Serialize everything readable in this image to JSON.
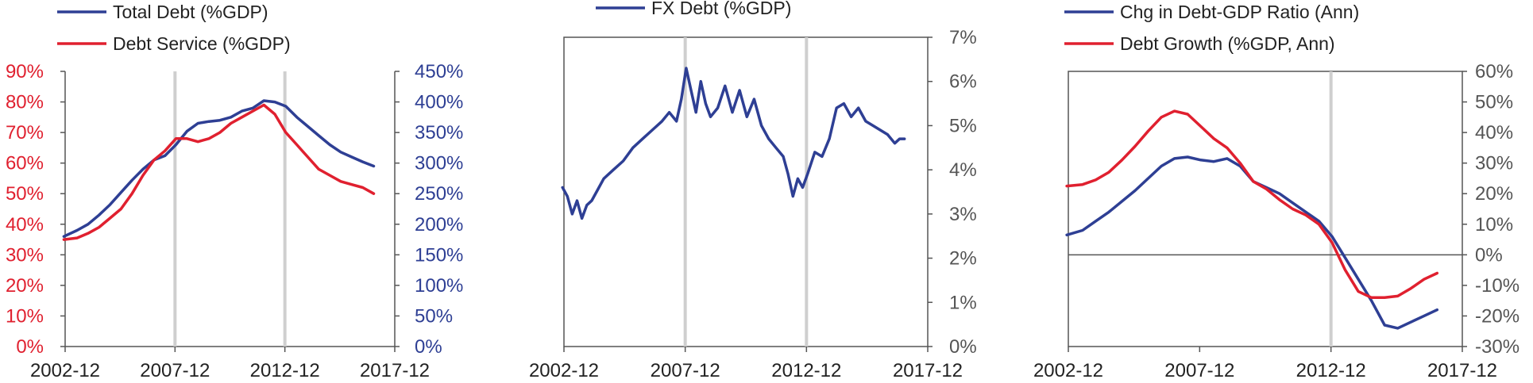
{
  "colors": {
    "blue": "#2e3f94",
    "red": "#e0202f",
    "axis": "#555555",
    "grid": "#cfcfcf",
    "text": "#222222"
  },
  "chart_data": [
    {
      "type": "line",
      "x_ticks": [
        "2002-12",
        "2007-12",
        "2012-12",
        "2017-12"
      ],
      "vlines": [
        "2007-12",
        "2012-12"
      ],
      "y_left": {
        "ticks": [
          "0%",
          "10%",
          "20%",
          "30%",
          "40%",
          "50%",
          "60%",
          "70%",
          "80%",
          "90%"
        ],
        "lim": [
          0,
          90
        ],
        "color": "red"
      },
      "y_right": {
        "ticks": [
          "0%",
          "50%",
          "100%",
          "150%",
          "200%",
          "250%",
          "300%",
          "350%",
          "400%",
          "450%"
        ],
        "lim": [
          0,
          450
        ],
        "color": "blue"
      },
      "series": [
        {
          "name": "Total Debt (%GDP)",
          "color": "blue",
          "axis": "right",
          "x": [
            2002.9,
            2003.5,
            2004.0,
            2004.5,
            2005.0,
            2005.5,
            2006.0,
            2006.5,
            2007.0,
            2007.5,
            2008.0,
            2008.5,
            2009.0,
            2009.5,
            2010.0,
            2010.5,
            2011.0,
            2011.5,
            2012.0,
            2012.5,
            2013.0,
            2013.5,
            2014.0,
            2014.5,
            2015.0,
            2015.5,
            2016.0,
            2016.5,
            2017.0
          ],
          "y": [
            180,
            190,
            200,
            215,
            232,
            252,
            272,
            290,
            305,
            312,
            330,
            352,
            365,
            368,
            370,
            375,
            385,
            390,
            402,
            400,
            393,
            375,
            360,
            345,
            330,
            318,
            310,
            302,
            295
          ]
        },
        {
          "name": "Debt Service (%GDP)",
          "color": "red",
          "axis": "left",
          "x": [
            2002.9,
            2003.5,
            2004.0,
            2004.5,
            2005.0,
            2005.5,
            2006.0,
            2006.5,
            2007.0,
            2007.5,
            2008.0,
            2008.5,
            2009.0,
            2009.5,
            2010.0,
            2010.5,
            2011.0,
            2011.5,
            2012.0,
            2012.5,
            2013.0,
            2013.5,
            2014.0,
            2014.5,
            2015.0,
            2015.5,
            2016.0,
            2016.5,
            2017.0
          ],
          "y": [
            35,
            35.5,
            37,
            39,
            42,
            45,
            50,
            56,
            61,
            64,
            68,
            68,
            67,
            68,
            70,
            73,
            75,
            77,
            79,
            76,
            70,
            66,
            62,
            58,
            56,
            54,
            53,
            52,
            50
          ]
        }
      ]
    },
    {
      "type": "line",
      "x_ticks": [
        "2002-12",
        "2007-12",
        "2012-12",
        "2017-12"
      ],
      "vlines": [
        "2007-12",
        "2012-12"
      ],
      "y_right": {
        "ticks": [
          "0%",
          "1%",
          "2%",
          "3%",
          "4%",
          "5%",
          "6%",
          "7%"
        ],
        "lim": [
          0,
          7
        ],
        "color": "axis"
      },
      "series": [
        {
          "name": "FX Debt (%GDP)",
          "color": "blue",
          "axis": "right",
          "x": [
            2002.9,
            2003.1,
            2003.3,
            2003.5,
            2003.7,
            2003.9,
            2004.1,
            2004.3,
            2004.6,
            2005.0,
            2005.4,
            2005.8,
            2006.2,
            2006.6,
            2007.0,
            2007.3,
            2007.6,
            2007.8,
            2008.0,
            2008.2,
            2008.4,
            2008.6,
            2008.8,
            2009.0,
            2009.3,
            2009.6,
            2009.9,
            2010.2,
            2010.5,
            2010.8,
            2011.1,
            2011.4,
            2011.7,
            2012.0,
            2012.2,
            2012.4,
            2012.6,
            2012.8,
            2013.0,
            2013.3,
            2013.6,
            2013.9,
            2014.2,
            2014.5,
            2014.8,
            2015.1,
            2015.4,
            2015.7,
            2016.0,
            2016.3,
            2016.6,
            2016.8,
            2017.0
          ],
          "y": [
            3.6,
            3.4,
            3.0,
            3.3,
            2.9,
            3.2,
            3.3,
            3.5,
            3.8,
            4.0,
            4.2,
            4.5,
            4.7,
            4.9,
            5.1,
            5.3,
            5.1,
            5.6,
            6.3,
            5.8,
            5.3,
            6.0,
            5.5,
            5.2,
            5.4,
            5.9,
            5.3,
            5.8,
            5.2,
            5.6,
            5.0,
            4.7,
            4.5,
            4.3,
            3.9,
            3.4,
            3.8,
            3.6,
            3.9,
            4.4,
            4.3,
            4.7,
            5.4,
            5.5,
            5.2,
            5.4,
            5.1,
            5.0,
            4.9,
            4.8,
            4.6,
            4.7,
            4.7
          ]
        }
      ]
    },
    {
      "type": "line",
      "x_ticks": [
        "2002-12",
        "2007-12",
        "2012-12",
        "2017-12"
      ],
      "vlines": [
        "2012-12"
      ],
      "y_right": {
        "ticks": [
          "-30%",
          "-20%",
          "-10%",
          "0%",
          "10%",
          "20%",
          "30%",
          "40%",
          "50%",
          "60%"
        ],
        "lim": [
          -30,
          60
        ],
        "color": "axis"
      },
      "series": [
        {
          "name": "Chg in Debt-GDP Ratio (Ann)",
          "color": "blue",
          "axis": "right",
          "x": [
            2002.9,
            2003.5,
            2004.0,
            2004.5,
            2005.0,
            2005.5,
            2006.0,
            2006.5,
            2007.0,
            2007.5,
            2008.0,
            2008.5,
            2009.0,
            2009.5,
            2010.0,
            2010.5,
            2011.0,
            2011.5,
            2012.0,
            2012.5,
            2013.0,
            2013.5,
            2014.0,
            2014.5,
            2015.0,
            2015.5,
            2016.0,
            2016.5,
            2017.0
          ],
          "y": [
            6.5,
            8,
            11,
            14,
            17.5,
            21,
            25,
            29,
            31.5,
            32,
            31,
            30.5,
            31.5,
            29,
            24,
            22,
            20,
            17,
            14,
            11,
            6,
            -1,
            -8,
            -15,
            -23,
            -24,
            -22,
            -20,
            -18
          ]
        },
        {
          "name": "Debt Growth (%GDP, Ann)",
          "color": "red",
          "axis": "right",
          "x": [
            2002.9,
            2003.5,
            2004.0,
            2004.5,
            2005.0,
            2005.5,
            2006.0,
            2006.5,
            2007.0,
            2007.5,
            2008.0,
            2008.5,
            2009.0,
            2009.5,
            2010.0,
            2010.5,
            2011.0,
            2011.5,
            2012.0,
            2012.5,
            2013.0,
            2013.5,
            2014.0,
            2014.5,
            2015.0,
            2015.5,
            2016.0,
            2016.5,
            2017.0
          ],
          "y": [
            22.5,
            23,
            24.5,
            27,
            31,
            35.5,
            40.5,
            45,
            47,
            46,
            42,
            38,
            35,
            30,
            24,
            21.5,
            18,
            15,
            13,
            10,
            4,
            -5,
            -12,
            -14,
            -14,
            -13.5,
            -11,
            -8,
            -6
          ]
        }
      ]
    }
  ]
}
